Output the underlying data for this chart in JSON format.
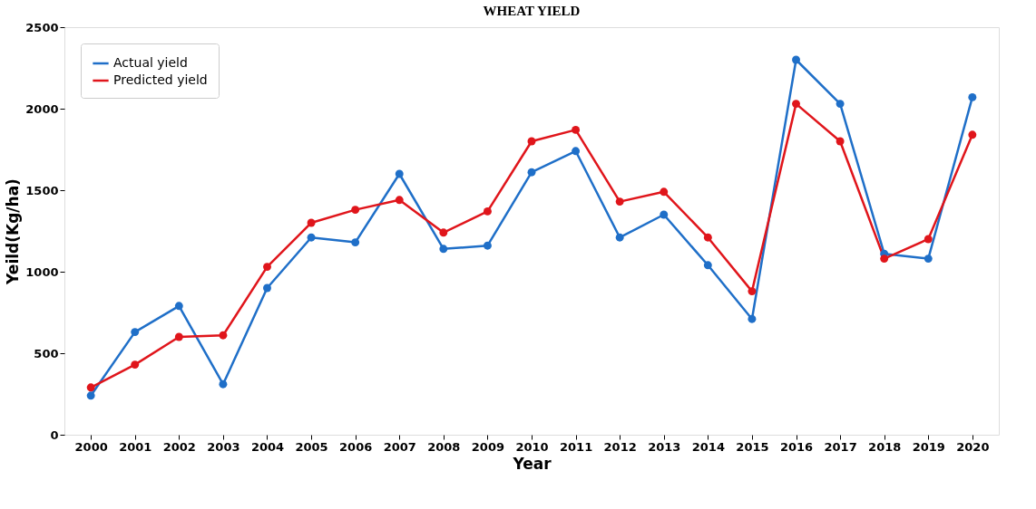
{
  "chart_data": {
    "type": "line",
    "title": "WHEAT YIELD",
    "xlabel": "Year",
    "ylabel": "Yeild(Kg/ha)",
    "categories": [
      "2000",
      "2001",
      "2002",
      "2003",
      "2004",
      "2005",
      "2006",
      "2007",
      "2008",
      "2009",
      "2010",
      "2011",
      "2012",
      "2013",
      "2014",
      "2015",
      "2016",
      "2017",
      "2018",
      "2019",
      "2020"
    ],
    "series": [
      {
        "name": "Actual yield",
        "color": "#1f6fc8",
        "values": [
          240,
          630,
          790,
          310,
          900,
          1210,
          1180,
          1600,
          1140,
          1160,
          1610,
          1740,
          1210,
          1350,
          1040,
          710,
          2300,
          2030,
          1110,
          1080,
          2070
        ]
      },
      {
        "name": "Predicted yield",
        "color": "#e0151b",
        "values": [
          290,
          430,
          600,
          610,
          1030,
          1300,
          1380,
          1440,
          1240,
          1370,
          1800,
          1870,
          1430,
          1490,
          1210,
          880,
          2030,
          1800,
          1080,
          1200,
          1840
        ]
      }
    ],
    "ylim": [
      0,
      2500
    ],
    "yticks": [
      0,
      500,
      1000,
      1500,
      2000,
      2500
    ],
    "grid": false,
    "legend": "top left",
    "marker": "circle",
    "line_style": "solid"
  }
}
